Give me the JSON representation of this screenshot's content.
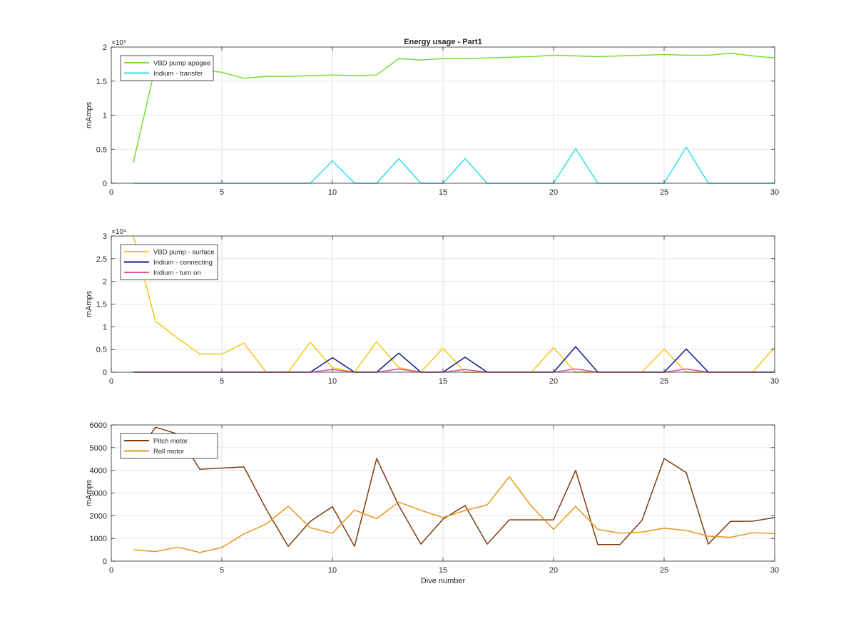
{
  "chart_data": [
    {
      "type": "line",
      "title": "Energy usage - Part1",
      "xlabel": "",
      "ylabel": "mAmps",
      "xlim": [
        0,
        30
      ],
      "ylim": [
        0,
        200000
      ],
      "x_ticks": [
        0,
        5,
        10,
        15,
        20,
        25,
        30
      ],
      "y_ticks": [
        0,
        50000,
        100000,
        150000,
        200000
      ],
      "y_tick_labels": [
        "0",
        "0.5",
        "1",
        "1.5",
        "2"
      ],
      "exponent_label": "×10⁵",
      "grid": true,
      "legend_position": "top-left",
      "series": [
        {
          "name": "VBD pump apogee",
          "color": "#77dd33",
          "x": [
            1,
            2,
            3,
            4,
            5,
            6,
            7,
            8,
            9,
            10,
            11,
            12,
            13,
            14,
            15,
            16,
            17,
            18,
            19,
            20,
            21,
            22,
            23,
            24,
            25,
            26,
            27,
            28,
            29,
            30
          ],
          "values": [
            31000,
            172000,
            166000,
            166000,
            163000,
            154000,
            157000,
            157000,
            158000,
            159000,
            158000,
            159000,
            183000,
            181000,
            183000,
            183000,
            184000,
            185000,
            186000,
            188000,
            187000,
            186000,
            187000,
            188000,
            189000,
            188000,
            188000,
            191000,
            187000,
            184000
          ]
        },
        {
          "name": "Iridium - transfer",
          "color": "#33ddee",
          "x": [
            1,
            2,
            3,
            4,
            5,
            6,
            7,
            8,
            9,
            10,
            11,
            12,
            13,
            14,
            15,
            16,
            17,
            18,
            19,
            20,
            21,
            22,
            23,
            24,
            25,
            26,
            27,
            28,
            29,
            30
          ],
          "values": [
            0,
            0,
            0,
            0,
            0,
            0,
            0,
            0,
            0,
            33000,
            0,
            0,
            36000,
            0,
            0,
            36000,
            0,
            0,
            0,
            0,
            51000,
            0,
            0,
            0,
            0,
            53000,
            0,
            0,
            0,
            0
          ]
        }
      ]
    },
    {
      "type": "line",
      "title": "",
      "xlabel": "",
      "ylabel": "mAmps",
      "xlim": [
        0,
        30
      ],
      "ylim": [
        0,
        30000
      ],
      "x_ticks": [
        0,
        5,
        10,
        15,
        20,
        25,
        30
      ],
      "y_ticks": [
        0,
        5000,
        10000,
        15000,
        20000,
        25000,
        30000
      ],
      "y_tick_labels": [
        "0",
        "0.5",
        "1",
        "1.5",
        "2",
        "2.5",
        "3"
      ],
      "exponent_label": "×10⁴",
      "grid": true,
      "legend_position": "top-left",
      "series": [
        {
          "name": "VBD pump - surface",
          "color": "#f0c814",
          "x": [
            1,
            2,
            3,
            4,
            5,
            6,
            7,
            8,
            9,
            10,
            11,
            12,
            13,
            14,
            15,
            16,
            17,
            18,
            19,
            20,
            21,
            22,
            23,
            24,
            25,
            26,
            27,
            28,
            29,
            30
          ],
          "values": [
            30000,
            11200,
            7500,
            4000,
            4000,
            6400,
            0,
            0,
            6600,
            1000,
            0,
            6700,
            1000,
            0,
            5300,
            0,
            0,
            0,
            0,
            5400,
            0,
            0,
            0,
            0,
            5100,
            0,
            0,
            0,
            0,
            5500
          ]
        },
        {
          "name": "Iridium - connecting",
          "color": "#0d1a8a",
          "x": [
            1,
            2,
            3,
            4,
            5,
            6,
            7,
            8,
            9,
            10,
            11,
            12,
            13,
            14,
            15,
            16,
            17,
            18,
            19,
            20,
            21,
            22,
            23,
            24,
            25,
            26,
            27,
            28,
            29,
            30
          ],
          "values": [
            0,
            0,
            0,
            0,
            0,
            0,
            0,
            0,
            0,
            3200,
            0,
            0,
            4200,
            0,
            0,
            3300,
            0,
            0,
            0,
            0,
            5600,
            0,
            0,
            0,
            0,
            5100,
            0,
            0,
            0,
            0
          ]
        },
        {
          "name": "Iridium - turn on",
          "color": "#e0559e",
          "x": [
            1,
            2,
            3,
            4,
            5,
            6,
            7,
            8,
            9,
            10,
            11,
            12,
            13,
            14,
            15,
            16,
            17,
            18,
            19,
            20,
            21,
            22,
            23,
            24,
            25,
            26,
            27,
            28,
            29,
            30
          ],
          "values": [
            0,
            0,
            0,
            0,
            0,
            0,
            0,
            0,
            0,
            600,
            0,
            0,
            700,
            0,
            0,
            600,
            0,
            0,
            0,
            0,
            700,
            0,
            0,
            0,
            0,
            700,
            0,
            0,
            0,
            0
          ]
        }
      ]
    },
    {
      "type": "line",
      "title": "",
      "xlabel": "Dive number",
      "ylabel": "mAmps",
      "xlim": [
        0,
        30
      ],
      "ylim": [
        0,
        6000
      ],
      "x_ticks": [
        0,
        5,
        10,
        15,
        20,
        25,
        30
      ],
      "y_ticks": [
        0,
        1000,
        2000,
        3000,
        4000,
        5000,
        6000
      ],
      "y_tick_labels": [
        "0",
        "1000",
        "2000",
        "3000",
        "4000",
        "5000",
        "6000"
      ],
      "exponent_label": "",
      "grid": true,
      "legend_position": "top-left",
      "series": [
        {
          "name": "Pitch motor",
          "color": "#7b3a14",
          "x": [
            1,
            2,
            3,
            4,
            5,
            6,
            7,
            8,
            9,
            10,
            11,
            12,
            13,
            14,
            15,
            16,
            17,
            18,
            19,
            20,
            21,
            22,
            23,
            24,
            25,
            26,
            27,
            28,
            29,
            30
          ],
          "values": [
            4500,
            5900,
            5600,
            4050,
            4100,
            4150,
            2300,
            650,
            1750,
            2400,
            650,
            4520,
            2450,
            750,
            1850,
            2450,
            750,
            1820,
            1820,
            1820,
            4000,
            730,
            730,
            1800,
            4520,
            3900,
            750,
            1750,
            1760,
            1920
          ]
        },
        {
          "name": "Roll motor",
          "color": "#e8951c",
          "x": [
            1,
            2,
            3,
            4,
            5,
            6,
            7,
            8,
            9,
            10,
            11,
            12,
            13,
            14,
            15,
            16,
            17,
            18,
            19,
            20,
            21,
            22,
            23,
            24,
            25,
            26,
            27,
            28,
            29,
            30
          ],
          "values": [
            500,
            420,
            620,
            380,
            600,
            1200,
            1630,
            2420,
            1470,
            1230,
            2250,
            1870,
            2600,
            2240,
            1920,
            2230,
            2480,
            3720,
            2420,
            1400,
            2410,
            1400,
            1230,
            1280,
            1450,
            1350,
            1100,
            1050,
            1250,
            1220
          ]
        }
      ]
    }
  ]
}
